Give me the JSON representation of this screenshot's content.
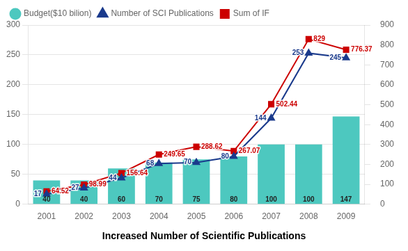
{
  "chart_data": {
    "type": "bar",
    "title": "Increased Number of Scientific Publications",
    "categories": [
      "2001",
      "2002",
      "2003",
      "2004",
      "2005",
      "2006",
      "2007",
      "2008",
      "2009"
    ],
    "series": [
      {
        "name": "Budget($10 bilion)",
        "type": "bar",
        "color": "#4DC8BF",
        "values": [
          40,
          40,
          60,
          70,
          75,
          80,
          100,
          100,
          147
        ]
      },
      {
        "name": "Number of SCI Publications",
        "type": "line",
        "color": "#1A3A8C",
        "marker": "triangle",
        "values": [
          17,
          27,
          44,
          68,
          70,
          80,
          144,
          253,
          245
        ]
      },
      {
        "name": "Sum of IF",
        "type": "line",
        "color": "#CC0000",
        "marker": "square",
        "axis": "y2",
        "values": [
          64.52,
          98.99,
          156.64,
          249.65,
          288.62,
          267.07,
          502.44,
          829,
          776.37
        ]
      }
    ],
    "ylim": [
      0,
      300
    ],
    "yticks": [
      0,
      50,
      100,
      150,
      200,
      250,
      300
    ],
    "y2lim": [
      0,
      900
    ],
    "y2ticks": [
      0,
      100,
      200,
      300,
      400,
      500,
      600,
      700,
      800,
      900
    ],
    "grid": true,
    "legend": "upper left",
    "data_labels": true
  }
}
